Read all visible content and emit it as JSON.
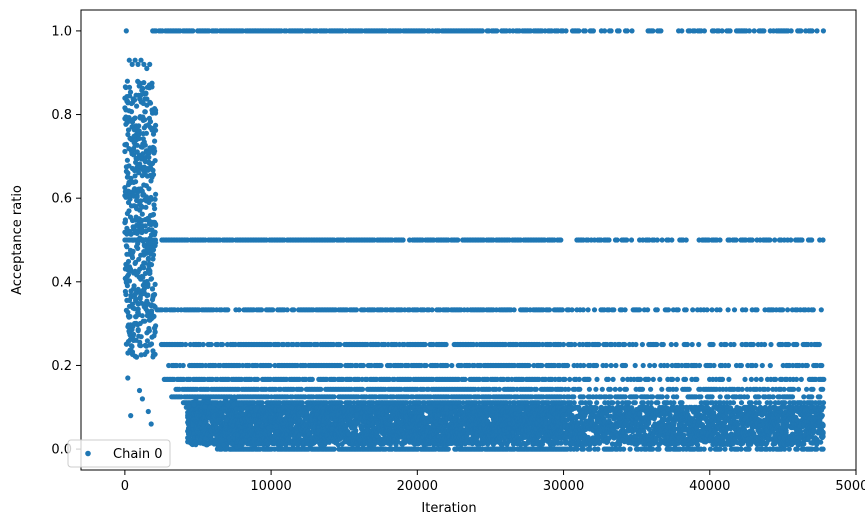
{
  "chart_data": {
    "type": "scatter",
    "title": "",
    "xlabel": "Iteration",
    "ylabel": "Acceptance ratio",
    "xlim": [
      -3000,
      50000
    ],
    "ylim": [
      -0.05,
      1.05
    ],
    "x_ticks": [
      0,
      10000,
      20000,
      30000,
      40000,
      50000
    ],
    "x_tick_labels": [
      "0",
      "10000",
      "20000",
      "30000",
      "40000",
      "50000"
    ],
    "y_ticks": [
      0.0,
      0.2,
      0.4,
      0.6,
      0.8,
      1.0
    ],
    "y_tick_labels": [
      "0.0",
      "0.2",
      "0.4",
      "0.6",
      "0.8",
      "1.0"
    ],
    "grid": false,
    "legend_position": "bottom-left",
    "series": [
      {
        "name": "Chain 0",
        "color": "#1f77b4",
        "x_max": 47800,
        "burn_in_end": 2100,
        "bands": [
          {
            "value": 1.0,
            "x_start": 1900,
            "x_end": 47800,
            "density": 0.85
          },
          {
            "value": 0.5,
            "x_start": 0,
            "x_end": 47800,
            "density": 0.9
          },
          {
            "value": 0.333,
            "x_start": 2200,
            "x_end": 47800,
            "density": 0.75
          },
          {
            "value": 0.25,
            "x_start": 2500,
            "x_end": 47800,
            "density": 0.8
          },
          {
            "value": 0.2,
            "x_start": 3000,
            "x_end": 47800,
            "density": 0.8
          },
          {
            "value": 0.1667,
            "x_start": 2700,
            "x_end": 47800,
            "density": 0.85
          },
          {
            "value": 0.1429,
            "x_start": 3500,
            "x_end": 47800,
            "density": 0.9
          },
          {
            "value": 0.125,
            "x_start": 3200,
            "x_end": 47800,
            "density": 0.9
          },
          {
            "value": 0.111,
            "x_start": 4000,
            "x_end": 47800,
            "density": 0.9
          },
          {
            "value": 0.1,
            "x_start": 4200,
            "x_end": 47800,
            "density": 0.95
          },
          {
            "value": 0.0,
            "x_start": 6500,
            "x_end": 47800,
            "density": 0.9
          }
        ],
        "dense_region": {
          "x_start": 4300,
          "x_end": 47800,
          "y_min": 0.01,
          "y_max": 0.1
        },
        "early_points": [
          [
            100,
            1.0
          ],
          [
            300,
            0.93
          ],
          [
            500,
            0.92
          ],
          [
            700,
            0.93
          ],
          [
            900,
            0.92
          ],
          [
            1100,
            0.93
          ],
          [
            1300,
            0.92
          ],
          [
            1500,
            0.91
          ],
          [
            1700,
            0.92
          ],
          [
            200,
            0.17
          ],
          [
            400,
            0.08
          ],
          [
            1800,
            0.06
          ],
          [
            1600,
            0.09
          ],
          [
            1200,
            0.12
          ],
          [
            1000,
            0.14
          ],
          [
            800,
            0.22
          ],
          [
            600,
            0.26
          ]
        ]
      }
    ]
  }
}
